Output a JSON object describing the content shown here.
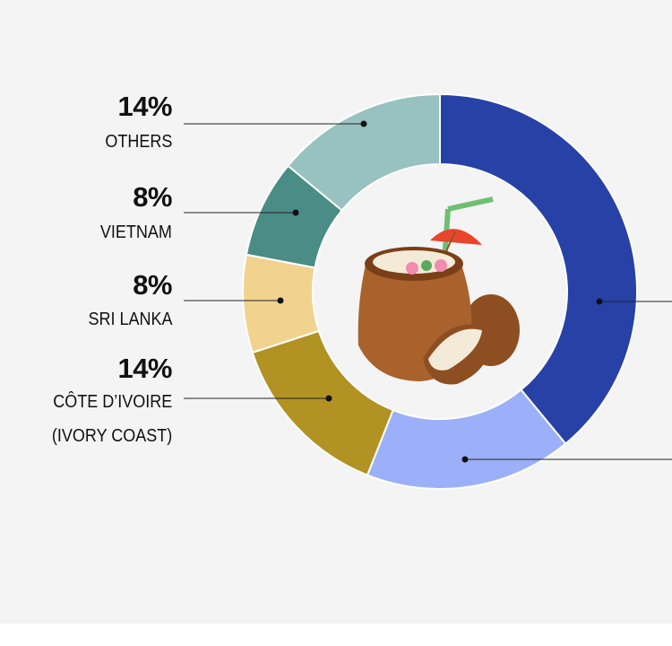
{
  "chart_data": {
    "type": "donut",
    "categories": [
      null,
      null,
      "CÔTE D’IVOIRE\n(IVORY COAST)",
      "SRI LANKA",
      "VIETNAM",
      "OTHERS"
    ],
    "values": [
      39,
      17,
      14,
      8,
      8,
      14
    ],
    "value_labels": [
      null,
      null,
      "14%",
      "8%",
      "8%",
      "14%"
    ],
    "colors": [
      "#2741a6",
      "#9bb0f8",
      "#b19223",
      "#f1d38f",
      "#4a8c86",
      "#97c2c0"
    ]
  }
}
